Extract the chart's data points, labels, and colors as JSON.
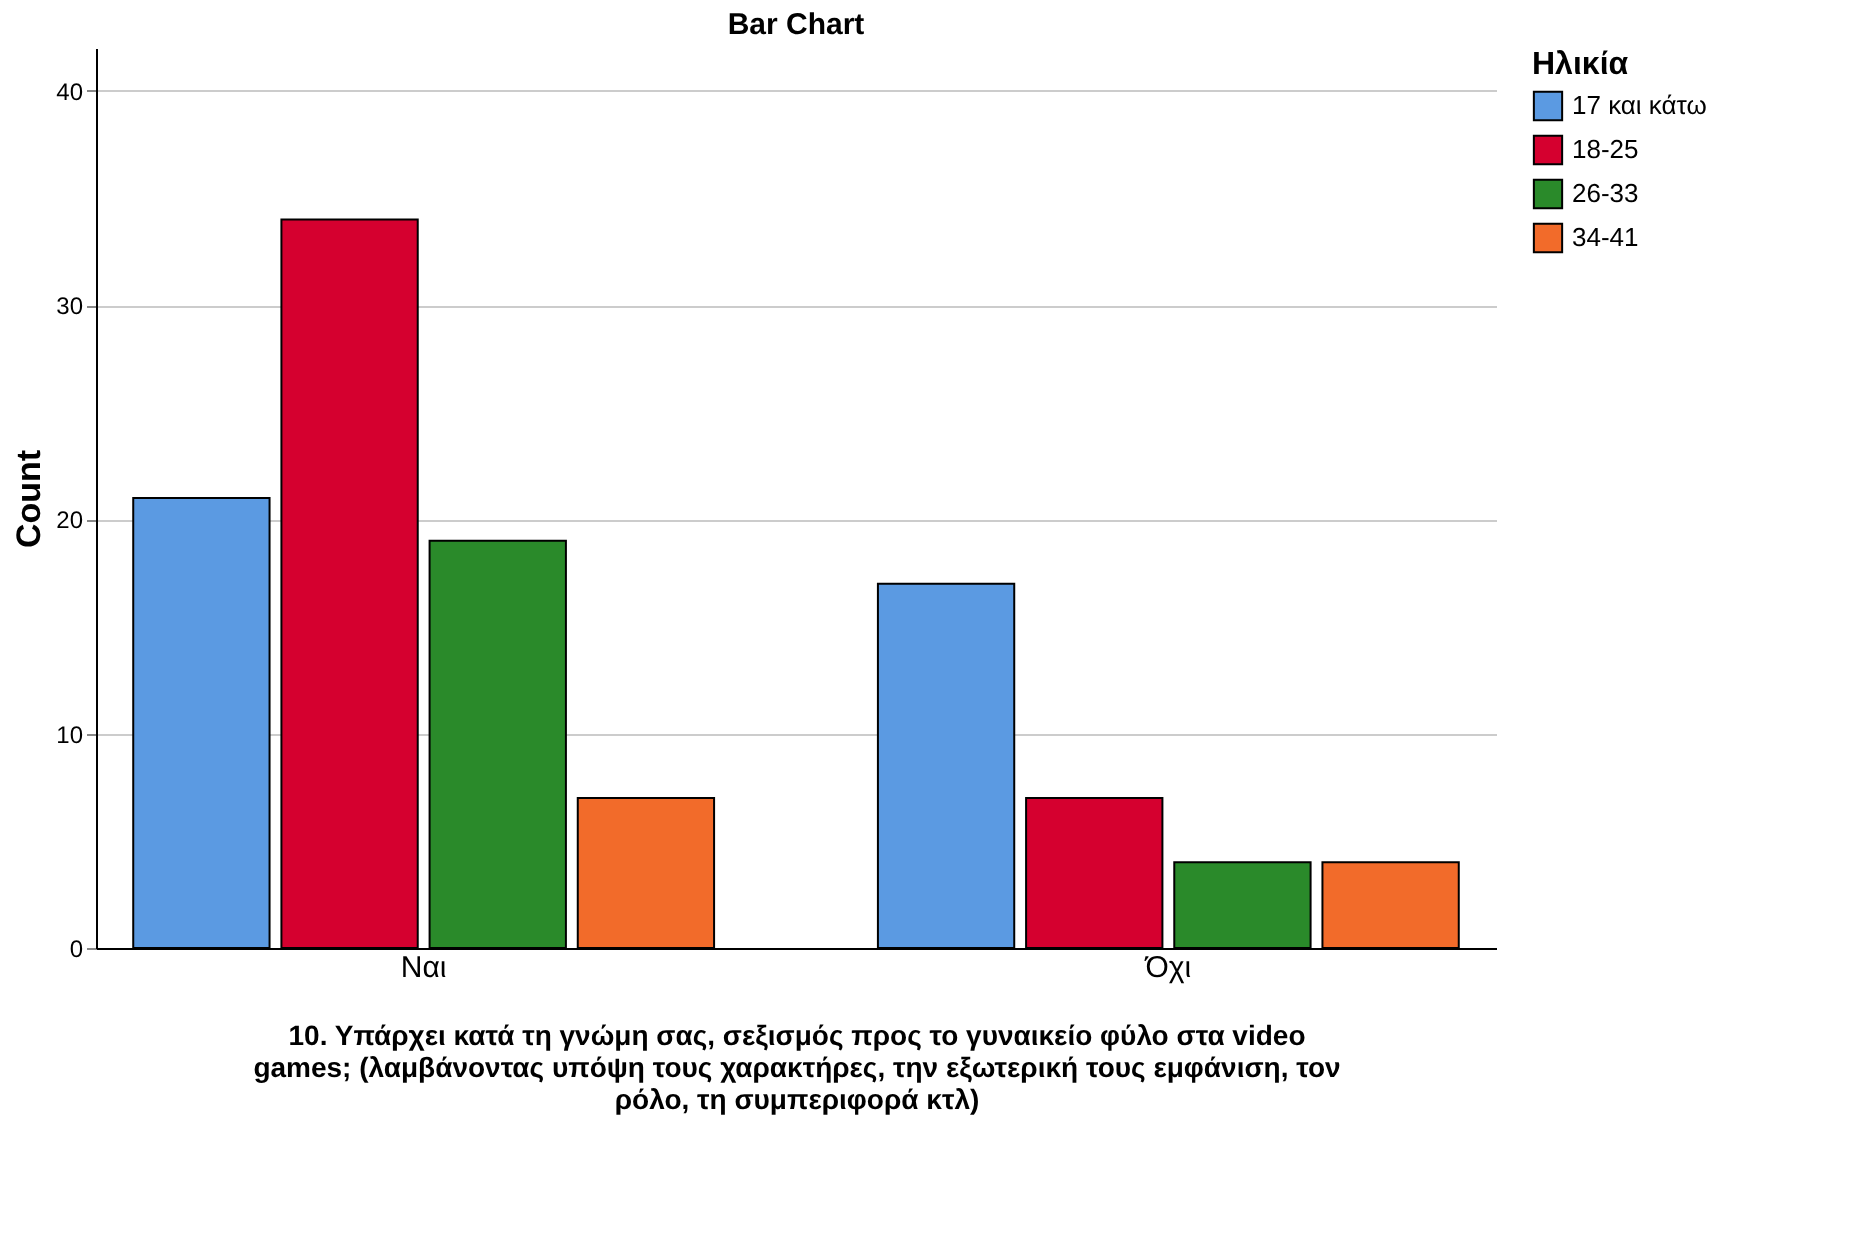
{
  "chart_data": {
    "type": "bar",
    "title": "Bar Chart",
    "xlabel": "10. Υπάρχει κατά τη γνώμη σας, σεξισμός προς το γυναικείο φύλο στα video games; (λαμβάνοντας υπόψη τους χαρακτήρες, την εξωτερική τους εμφάνιση, τον ρόλο, τη συμπεριφορά κτλ)",
    "ylabel": "Count",
    "legend_title": "Ηλικία",
    "categories": [
      "Ναι",
      "Όχι"
    ],
    "series": [
      {
        "name": "17 και κάτω",
        "color": "#5b9ae2",
        "values": [
          21,
          17
        ]
      },
      {
        "name": "18-25",
        "color": "#d5002f",
        "values": [
          34,
          7
        ]
      },
      {
        "name": "26-33",
        "color": "#2a8a2a",
        "values": [
          19,
          4
        ]
      },
      {
        "name": "34-41",
        "color": "#f26b2a",
        "values": [
          7,
          4
        ]
      }
    ],
    "ylim": [
      0,
      42
    ],
    "yticks": [
      0,
      10,
      20,
      30,
      40
    ],
    "grid": "y",
    "legend": "top right"
  }
}
